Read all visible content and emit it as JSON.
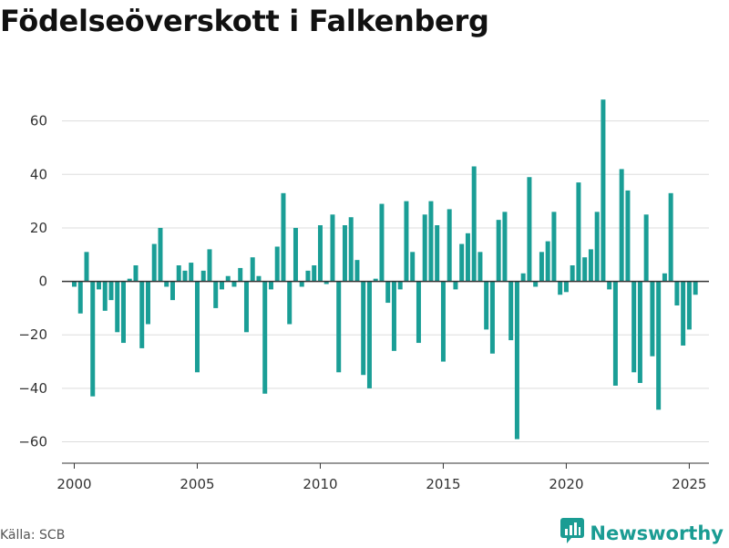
{
  "title": "Födelseöverskott i Falkenberg",
  "source": "Källa: SCB",
  "brand": {
    "name": "Newsworthy",
    "logo_icon": "bar-chart-speech-bubble-icon"
  },
  "colors": {
    "bar": "#1a9e96",
    "zero_line": "#333333",
    "grid": "#dddddd",
    "brand": "#1a9c93"
  },
  "chart_data": {
    "type": "bar",
    "title": "Födelseöverskott i Falkenberg",
    "xlabel": "",
    "ylabel": "",
    "grid": true,
    "frequency": "quarterly",
    "xlim": [
      1999.5,
      2025.8
    ],
    "ylim": [
      -68,
      80
    ],
    "x_ticks": [
      2000,
      2005,
      2010,
      2015,
      2020,
      2025
    ],
    "x_tick_labels": [
      "2000",
      "2005",
      "2010",
      "2015",
      "2020",
      "2025"
    ],
    "y_ticks": [
      -60,
      -40,
      -20,
      0,
      20,
      40,
      60
    ],
    "y_tick_labels": [
      "−60",
      "−40",
      "−20",
      "0",
      "20",
      "40",
      "60"
    ],
    "x": [
      2000.0,
      2000.25,
      2000.5,
      2000.75,
      2001.0,
      2001.25,
      2001.5,
      2001.75,
      2002.0,
      2002.25,
      2002.5,
      2002.75,
      2003.0,
      2003.25,
      2003.5,
      2003.75,
      2004.0,
      2004.25,
      2004.5,
      2004.75,
      2005.0,
      2005.25,
      2005.5,
      2005.75,
      2006.0,
      2006.25,
      2006.5,
      2006.75,
      2007.0,
      2007.25,
      2007.5,
      2007.75,
      2008.0,
      2008.25,
      2008.5,
      2008.75,
      2009.0,
      2009.25,
      2009.5,
      2009.75,
      2010.0,
      2010.25,
      2010.5,
      2010.75,
      2011.0,
      2011.25,
      2011.5,
      2011.75,
      2012.0,
      2012.25,
      2012.5,
      2012.75,
      2013.0,
      2013.25,
      2013.5,
      2013.75,
      2014.0,
      2014.25,
      2014.5,
      2014.75,
      2015.0,
      2015.25,
      2015.5,
      2015.75,
      2016.0,
      2016.25,
      2016.5,
      2016.75,
      2017.0,
      2017.25,
      2017.5,
      2017.75,
      2018.0,
      2018.25,
      2018.5,
      2018.75,
      2019.0,
      2019.25,
      2019.5,
      2019.75,
      2020.0,
      2020.25,
      2020.5,
      2020.75,
      2021.0,
      2021.25,
      2021.5,
      2021.75,
      2022.0,
      2022.25,
      2022.5,
      2022.75,
      2023.0,
      2023.25,
      2023.5,
      2023.75,
      2024.0,
      2024.25,
      2024.5,
      2024.75,
      2025.0,
      2025.25
    ],
    "values": [
      -2,
      -12,
      11,
      -43,
      -3,
      -11,
      -7,
      -19,
      -23,
      1,
      6,
      -25,
      -16,
      14,
      20,
      -2,
      -7,
      6,
      4,
      7,
      -34,
      4,
      12,
      -10,
      -3,
      2,
      -2,
      5,
      -19,
      9,
      2,
      -42,
      -3,
      13,
      33,
      -16,
      20,
      -2,
      4,
      6,
      21,
      -1,
      25,
      -34,
      21,
      24,
      8,
      -35,
      -40,
      1,
      29,
      -8,
      -26,
      -3,
      30,
      11,
      -23,
      25,
      30,
      21,
      -30,
      27,
      -3,
      14,
      18,
      43,
      11,
      -18,
      -27,
      23,
      26,
      -22,
      -59,
      3,
      39,
      -2,
      11,
      15,
      26,
      -5,
      -4,
      6,
      37,
      9,
      12,
      26,
      68,
      -3,
      -39,
      42,
      34,
      -34,
      -38,
      25,
      -28,
      -48,
      3,
      33,
      -9,
      -24,
      -18,
      -5
    ]
  }
}
